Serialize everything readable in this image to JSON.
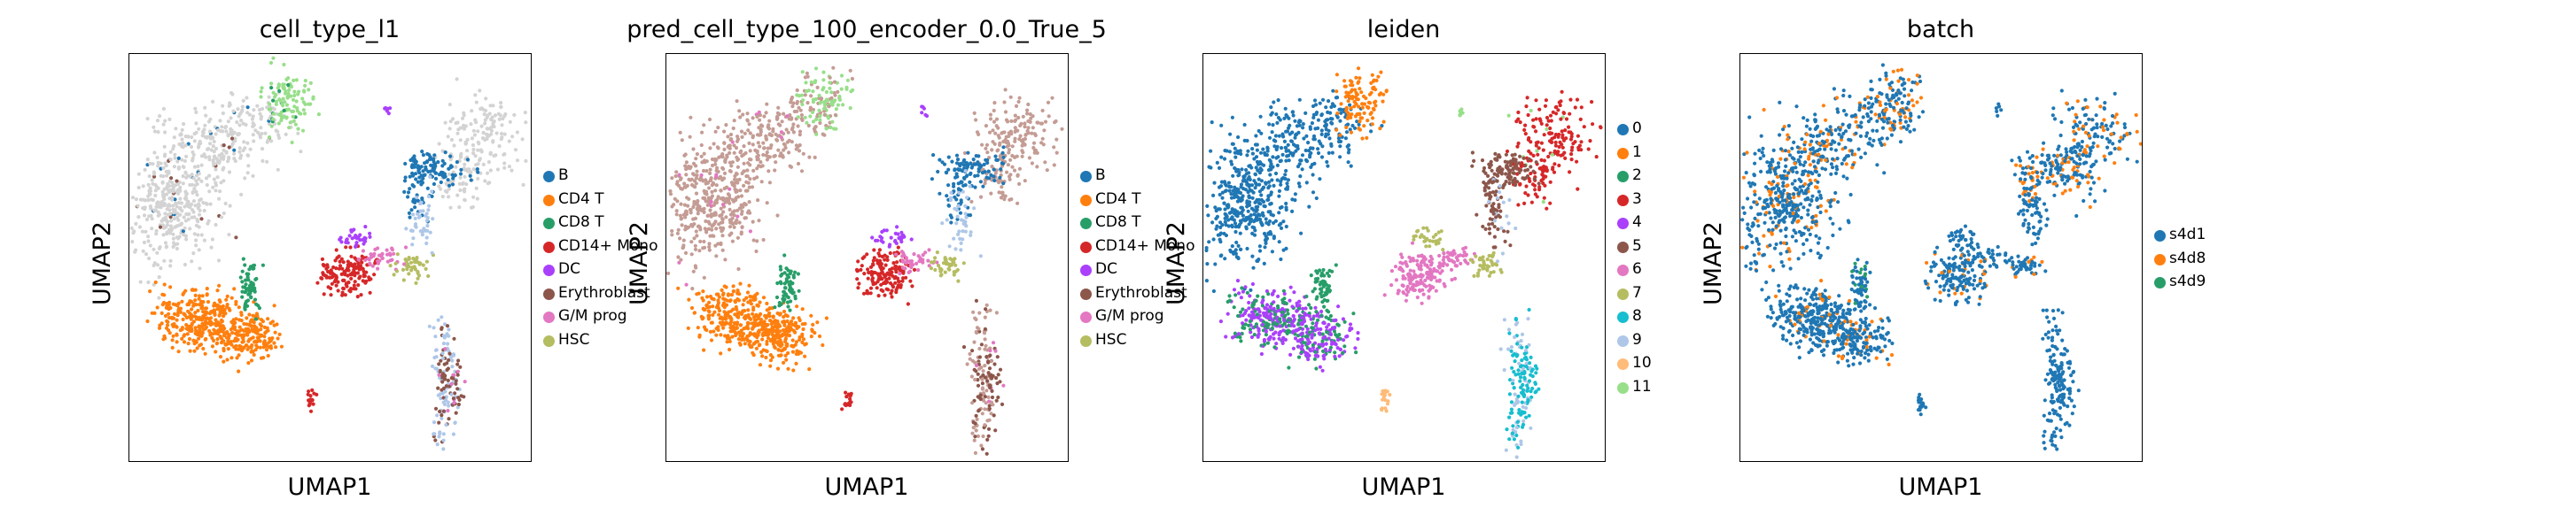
{
  "chart_data": [
    {
      "type": "scatter",
      "title": "cell_type_l1",
      "xlabel": "UMAP1",
      "ylabel": "UMAP2",
      "grid": false,
      "legend_placement": "right",
      "legend": [
        {
          "label": "B",
          "color": "#1f77b4"
        },
        {
          "label": "CD4 T",
          "color": "#ff7f0e"
        },
        {
          "label": "CD8 T",
          "color": "#279e68"
        },
        {
          "label": "CD14+ Mono",
          "color": "#d62728"
        },
        {
          "label": "DC",
          "color": "#aa40fc"
        },
        {
          "label": "Erythroblast",
          "color": "#8c564b"
        },
        {
          "label": "G/M prog",
          "color": "#e377c2"
        },
        {
          "label": "HSC",
          "color": "#b5bd61"
        }
      ]
    },
    {
      "type": "scatter",
      "title": "pred_cell_type_100_encoder_0.0_True_5",
      "xlabel": "UMAP1",
      "ylabel": "UMAP2",
      "grid": false,
      "legend_placement": "right",
      "legend": [
        {
          "label": "B",
          "color": "#1f77b4"
        },
        {
          "label": "CD4 T",
          "color": "#ff7f0e"
        },
        {
          "label": "CD8 T",
          "color": "#279e68"
        },
        {
          "label": "CD14+ Mono",
          "color": "#d62728"
        },
        {
          "label": "DC",
          "color": "#aa40fc"
        },
        {
          "label": "Erythroblast",
          "color": "#8c564b"
        },
        {
          "label": "G/M prog",
          "color": "#e377c2"
        },
        {
          "label": "HSC",
          "color": "#b5bd61"
        }
      ]
    },
    {
      "type": "scatter",
      "title": "leiden",
      "xlabel": "UMAP1",
      "ylabel": "UMAP2",
      "grid": false,
      "legend_placement": "right",
      "legend": [
        {
          "label": "0",
          "color": "#1f77b4"
        },
        {
          "label": "1",
          "color": "#ff7f0e"
        },
        {
          "label": "2",
          "color": "#279e68"
        },
        {
          "label": "3",
          "color": "#d62728"
        },
        {
          "label": "4",
          "color": "#aa40fc"
        },
        {
          "label": "5",
          "color": "#8c564b"
        },
        {
          "label": "6",
          "color": "#e377c2"
        },
        {
          "label": "7",
          "color": "#b5bd61"
        },
        {
          "label": "8",
          "color": "#17becf"
        },
        {
          "label": "9",
          "color": "#aec7e8"
        },
        {
          "label": "10",
          "color": "#ffbb78"
        },
        {
          "label": "11",
          "color": "#98df8a"
        }
      ]
    },
    {
      "type": "scatter",
      "title": "batch",
      "xlabel": "UMAP1",
      "ylabel": "UMAP2",
      "grid": false,
      "legend_placement": "right",
      "legend": [
        {
          "label": "s4d1",
          "color": "#1f77b4"
        },
        {
          "label": "s4d8",
          "color": "#ff7f0e"
        },
        {
          "label": "s4d9",
          "color": "#279e68"
        }
      ]
    }
  ]
}
